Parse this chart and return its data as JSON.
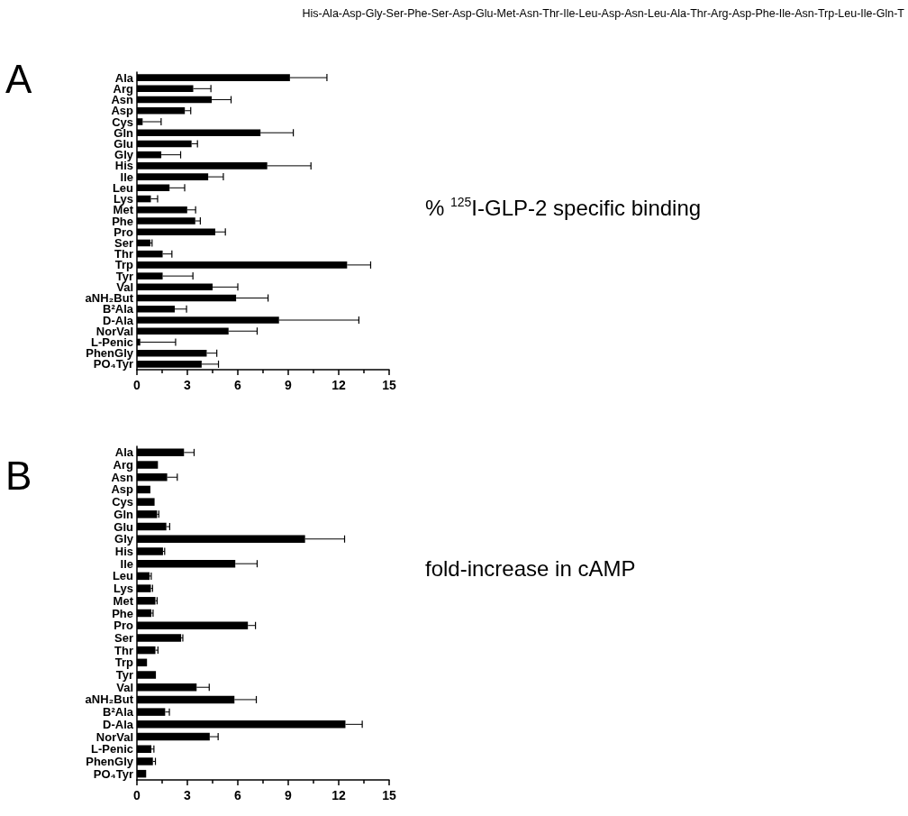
{
  "chart_data": [
    {
      "type": "bar",
      "orientation": "horizontal",
      "title": "His-Ala-Asp-Gly-Ser-Phe-Ser-Asp-Glu-Met-Asn-Thr-Ile-Leu-Asp-Asn-Leu-Ala-Thr-Arg-Asp-Phe-Ile-Asn-Trp-Leu-Ile-Gln-T",
      "xlabel": "% $^{125}$I-GLP-2 specific binding",
      "annotations": [
        "A"
      ],
      "categories": [
        "Ala",
        "Arg",
        "Asn",
        "Asp",
        "Cys",
        "Gln",
        "Glu",
        "Gly",
        "His",
        "Ile",
        "Leu",
        "Lys",
        "Met",
        "Phe",
        "Pro",
        "Ser",
        "Thr",
        "Trp",
        "Tyr",
        "Val",
        "aNH₂But",
        "B²Ala",
        "D-Ala",
        "NorVal",
        "L-Penic",
        "PhenGly",
        "PO₄Tyr"
      ],
      "values": [
        9.1,
        3.35,
        4.45,
        2.85,
        0.34,
        7.35,
        3.25,
        1.45,
        7.75,
        4.24,
        1.94,
        0.83,
        2.99,
        3.47,
        4.66,
        0.8,
        1.53,
        12.5,
        1.53,
        4.5,
        5.9,
        2.25,
        8.45,
        5.45,
        0.2,
        4.15,
        3.85
      ],
      "errors": [
        2.2,
        1.05,
        1.15,
        0.35,
        1.1,
        1.95,
        0.35,
        1.15,
        2.6,
        0.9,
        0.9,
        0.4,
        0.5,
        0.3,
        0.6,
        0.1,
        0.55,
        1.4,
        1.8,
        1.5,
        1.9,
        0.7,
        4.75,
        1.7,
        2.1,
        0.6,
        1.0
      ],
      "color": "#000000",
      "xlim": [
        0,
        15
      ],
      "xticks": [
        0,
        3,
        6,
        9,
        12,
        15
      ],
      "grid": false
    },
    {
      "type": "bar",
      "orientation": "horizontal",
      "xlabel": "fold-increase in cAMP",
      "annotations": [
        "B"
      ],
      "categories": [
        "Ala",
        "Arg",
        "Asn",
        "Asp",
        "Cys",
        "Gln",
        "Glu",
        "Gly",
        "His",
        "Ile",
        "Leu",
        "Lys",
        "Met",
        "Phe",
        "Pro",
        "Ser",
        "Thr",
        "Trp",
        "Tyr",
        "Val",
        "aNH₂But",
        "B²Ala",
        "D-Ala",
        "NorVal",
        "L-Penic",
        "PhenGly",
        "PO₄Tyr"
      ],
      "values": [
        2.8,
        1.25,
        1.8,
        0.8,
        1.05,
        1.2,
        1.75,
        10.0,
        1.55,
        5.85,
        0.75,
        0.83,
        1.1,
        0.86,
        6.6,
        2.63,
        1.1,
        0.6,
        1.13,
        3.55,
        5.8,
        1.68,
        12.4,
        4.33,
        0.86,
        0.95,
        0.55
      ],
      "errors": [
        0.6,
        null,
        0.6,
        null,
        null,
        0.1,
        0.2,
        2.35,
        0.1,
        1.3,
        0.1,
        0.1,
        0.1,
        0.1,
        0.45,
        0.1,
        0.15,
        null,
        null,
        0.75,
        1.3,
        0.25,
        1.0,
        0.5,
        0.15,
        0.15,
        null
      ],
      "color": "#000000",
      "xlim": [
        0,
        15
      ],
      "xticks": [
        0,
        3,
        6,
        9,
        12,
        15
      ],
      "grid": false
    }
  ]
}
